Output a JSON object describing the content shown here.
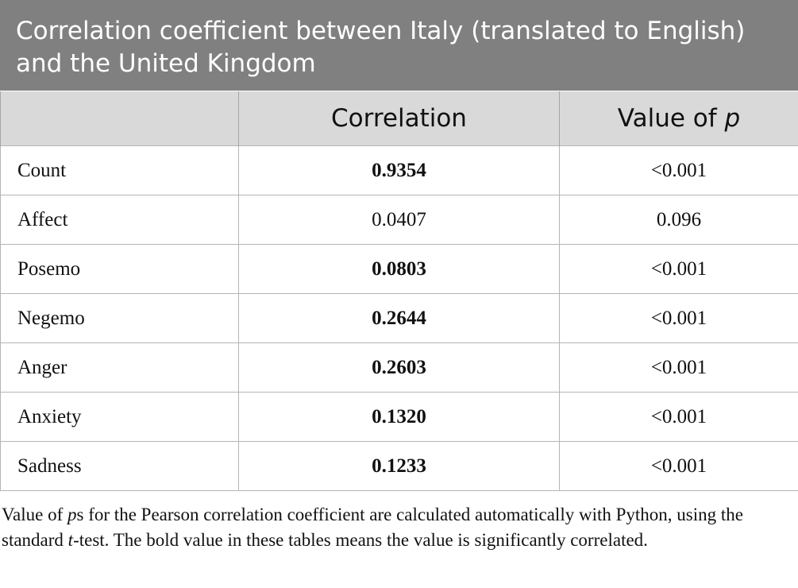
{
  "table": {
    "title": "Correlation coefficient between Italy (translated to English) and the United Kingdom",
    "header": {
      "col1": "",
      "col2": "Correlation",
      "col3_prefix": "Value of ",
      "col3_italic": "p"
    },
    "rows": [
      {
        "label": "Count",
        "correlation": "0.9354",
        "p": "<0.001",
        "bold": true
      },
      {
        "label": "Affect",
        "correlation": "0.0407",
        "p": "0.096",
        "bold": false
      },
      {
        "label": "Posemo",
        "correlation": "0.0803",
        "p": "<0.001",
        "bold": true
      },
      {
        "label": "Negemo",
        "correlation": "0.2644",
        "p": "<0.001",
        "bold": true
      },
      {
        "label": "Anger",
        "correlation": "0.2603",
        "p": "<0.001",
        "bold": true
      },
      {
        "label": "Anxiety",
        "correlation": "0.1320",
        "p": "<0.001",
        "bold": true
      },
      {
        "label": "Sadness",
        "correlation": "0.1233",
        "p": "<0.001",
        "bold": true
      }
    ]
  },
  "footnote": {
    "part1": "Value of ",
    "part2_italic": "p",
    "part3": "s for the Pearson correlation coefficient are calculated automatically with Python, using the standard ",
    "part4_italic": "t",
    "part5": "-test. The bold value in these tables means the value is significantly correlated."
  }
}
